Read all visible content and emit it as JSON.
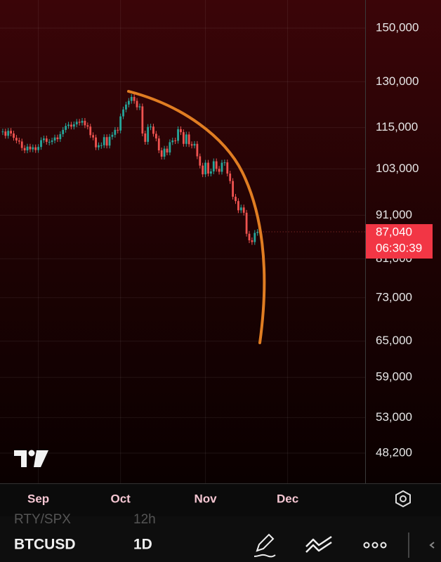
{
  "chart_data": {
    "type": "candlestick",
    "ylog": true,
    "grid": true,
    "up_color": "#26a69a",
    "down_color": "#ef5350",
    "ylim": [
      44460,
      161700
    ],
    "yticks": [
      {
        "value": 150000,
        "label": "150,000"
      },
      {
        "value": 130000,
        "label": "130,000"
      },
      {
        "value": 115000,
        "label": "115,000"
      },
      {
        "value": 103000,
        "label": "103,000"
      },
      {
        "value": 91000,
        "label": "91,000"
      },
      {
        "value": 81000,
        "label": "81,000"
      },
      {
        "value": 73000,
        "label": "73,000"
      },
      {
        "value": 65000,
        "label": "65,000"
      },
      {
        "value": 59000,
        "label": "59,000"
      },
      {
        "value": 53000,
        "label": "53,000"
      },
      {
        "value": 48200,
        "label": "48,200"
      }
    ],
    "xlim": [
      -14,
      119.3
    ],
    "xticks": [
      {
        "value": 0,
        "label": "Sep"
      },
      {
        "value": 30,
        "label": "Oct"
      },
      {
        "value": 61,
        "label": "Nov"
      },
      {
        "value": 91,
        "label": "Dec"
      }
    ],
    "x": [
      -13,
      -12,
      -11,
      -10,
      -9,
      -8,
      -7,
      -6,
      -5,
      -4,
      -3,
      -2,
      -1,
      0,
      1,
      2,
      3,
      4,
      5,
      6,
      7,
      8,
      9,
      10,
      11,
      12,
      13,
      14,
      15,
      16,
      17,
      18,
      19,
      20,
      21,
      22,
      23,
      24,
      25,
      26,
      27,
      28,
      29,
      30,
      31,
      32,
      33,
      34,
      35,
      36,
      37,
      38,
      39,
      40,
      41,
      42,
      43,
      44,
      45,
      46,
      47,
      48,
      49,
      50,
      51,
      52,
      53,
      54,
      55,
      56,
      57,
      58,
      59,
      60,
      61,
      62,
      63,
      64,
      65,
      66,
      67,
      68,
      69,
      70,
      71,
      72,
      73,
      74,
      75,
      76,
      77,
      78,
      79,
      80
    ],
    "values": [
      113800,
      112500,
      114000,
      113200,
      111900,
      111100,
      110800,
      108900,
      108200,
      109300,
      108500,
      109100,
      108300,
      109200,
      111200,
      111700,
      110700,
      110700,
      111100,
      112000,
      111500,
      113000,
      114300,
      115500,
      115900,
      115300,
      116000,
      116800,
      116500,
      117100,
      115700,
      115300,
      112700,
      112000,
      109100,
      109700,
      109700,
      112100,
      109600,
      112200,
      112800,
      114300,
      114100,
      118500,
      120700,
      122300,
      123500,
      124800,
      123500,
      121400,
      121700,
      113200,
      110700,
      115200,
      115300,
      113100,
      111700,
      108200,
      106400,
      108700,
      107600,
      110600,
      111100,
      111000,
      114500,
      113600,
      110100,
      112900,
      110000,
      109600,
      110100,
      106500,
      103900,
      101500,
      104700,
      101700,
      102300,
      105100,
      103000,
      102200,
      104700,
      104800,
      101700,
      99700,
      95600,
      94500,
      92200,
      92900,
      91600,
      86600,
      85100,
      84700,
      86800,
      87040
    ],
    "last_price": {
      "value": 87040,
      "label": "87,040"
    },
    "countdown": "06:30:39"
  },
  "toolbar": {
    "hidden_symbol": "RTY/SPX",
    "hidden_interval": "12h",
    "symbol": "BTCUSD",
    "interval": "1D"
  }
}
